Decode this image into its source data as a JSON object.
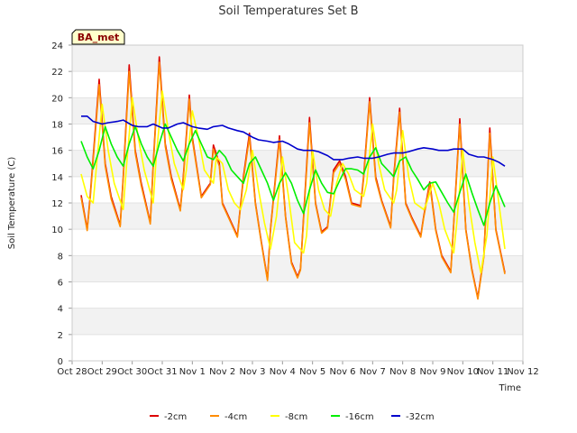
{
  "chart_data": {
    "type": "line",
    "title": "Soil Temperatures Set B",
    "xlabel": "Time",
    "ylabel": "Soil Temperature (C)",
    "badge": "BA_met",
    "ylim": [
      0,
      24
    ],
    "yticks": [
      0,
      2,
      4,
      6,
      8,
      10,
      12,
      14,
      16,
      18,
      20,
      22,
      24
    ],
    "xlim": [
      0,
      15
    ],
    "xtick_labels": [
      "Oct 28",
      "Oct 29",
      "Oct 30",
      "Oct 31",
      "Nov 1",
      "Nov 2",
      "Nov 3",
      "Nov 4",
      "Nov 5",
      "Nov 6",
      "Nov 7",
      "Nov 8",
      "Nov 9",
      "Nov 10",
      "Nov 11",
      "Nov 12"
    ],
    "grid": "horizontal bands",
    "legend_position": "bottom",
    "x_unit": "days since Oct 28",
    "series": [
      {
        "name": "-2cm",
        "color": "#dd0000",
        "x": [
          0.3,
          0.5,
          0.6,
          0.9,
          1.1,
          1.3,
          1.6,
          1.7,
          1.9,
          2.1,
          2.3,
          2.6,
          2.7,
          2.9,
          3.1,
          3.3,
          3.6,
          3.7,
          3.9,
          4.0,
          4.3,
          4.6,
          4.7,
          4.9,
          5.0,
          5.3,
          5.5,
          5.7,
          5.9,
          6.1,
          6.3,
          6.5,
          6.6,
          6.9,
          7.1,
          7.3,
          7.5,
          7.6,
          7.9,
          8.1,
          8.3,
          8.5,
          8.7,
          8.9,
          9.1,
          9.3,
          9.6,
          9.7,
          9.9,
          10.1,
          10.3,
          10.6,
          10.7,
          10.9,
          11.1,
          11.3,
          11.6,
          11.7,
          11.9,
          12.1,
          12.3,
          12.6,
          12.7,
          12.9,
          13.1,
          13.3,
          13.5,
          13.7,
          13.9,
          14.1,
          14.4
        ],
        "y": [
          12.6,
          10.0,
          12.5,
          21.4,
          15.0,
          12.5,
          10.3,
          14.0,
          22.5,
          16.0,
          13.5,
          10.5,
          15.0,
          23.1,
          16.5,
          14.0,
          11.5,
          14.0,
          20.2,
          17.0,
          12.5,
          13.5,
          16.4,
          15.0,
          12.0,
          10.5,
          9.5,
          14.0,
          17.3,
          12.0,
          9.0,
          6.2,
          10.0,
          17.1,
          11.0,
          7.5,
          6.4,
          7.0,
          18.5,
          12.0,
          9.8,
          10.2,
          14.5,
          15.2,
          14.0,
          12.0,
          11.8,
          14.0,
          20.0,
          14.0,
          12.2,
          10.2,
          14.0,
          19.2,
          12.0,
          10.9,
          9.5,
          11.0,
          13.6,
          10.0,
          8.0,
          6.8,
          10.5,
          18.4,
          10.0,
          7.0,
          4.8,
          8.0,
          17.7,
          10.0,
          6.7
        ]
      },
      {
        "name": "-4cm",
        "color": "#ff8c00",
        "x": [
          0.3,
          0.5,
          0.6,
          0.9,
          1.1,
          1.3,
          1.6,
          1.7,
          1.9,
          2.1,
          2.3,
          2.6,
          2.7,
          2.9,
          3.1,
          3.3,
          3.6,
          3.7,
          3.9,
          4.0,
          4.3,
          4.6,
          4.7,
          4.9,
          5.0,
          5.3,
          5.5,
          5.7,
          5.9,
          6.1,
          6.3,
          6.5,
          6.6,
          6.9,
          7.1,
          7.3,
          7.5,
          7.6,
          7.9,
          8.1,
          8.3,
          8.5,
          8.7,
          8.9,
          9.1,
          9.3,
          9.6,
          9.7,
          9.9,
          10.1,
          10.3,
          10.6,
          10.7,
          10.9,
          11.1,
          11.3,
          11.6,
          11.7,
          11.9,
          12.1,
          12.3,
          12.6,
          12.7,
          12.9,
          13.1,
          13.3,
          13.5,
          13.7,
          13.9,
          14.1,
          14.4
        ],
        "y": [
          12.4,
          9.9,
          12.3,
          21.0,
          14.8,
          12.3,
          10.2,
          13.8,
          22.0,
          15.8,
          13.3,
          10.4,
          14.8,
          22.7,
          16.3,
          13.8,
          11.4,
          13.8,
          19.9,
          16.8,
          12.4,
          13.4,
          16.1,
          14.8,
          11.9,
          10.4,
          9.4,
          13.8,
          17.0,
          11.9,
          8.9,
          6.1,
          9.9,
          16.8,
          10.9,
          7.4,
          6.3,
          6.9,
          18.1,
          11.9,
          9.7,
          10.1,
          14.3,
          15.0,
          13.8,
          11.9,
          11.7,
          13.8,
          19.7,
          13.8,
          12.1,
          10.1,
          13.8,
          18.9,
          11.9,
          10.8,
          9.4,
          10.9,
          13.4,
          9.9,
          7.9,
          6.7,
          10.4,
          18.0,
          9.9,
          6.9,
          4.7,
          7.9,
          17.3,
          9.9,
          6.6
        ]
      },
      {
        "name": "-8cm",
        "color": "#ffff00",
        "x": [
          0.3,
          0.5,
          0.7,
          1.0,
          1.2,
          1.4,
          1.7,
          1.8,
          2.0,
          2.2,
          2.4,
          2.7,
          2.8,
          3.0,
          3.2,
          3.4,
          3.7,
          3.8,
          4.0,
          4.2,
          4.4,
          4.7,
          4.8,
          5.0,
          5.2,
          5.4,
          5.6,
          5.8,
          6.0,
          6.2,
          6.4,
          6.6,
          6.8,
          7.0,
          7.2,
          7.4,
          7.7,
          7.8,
          8.0,
          8.2,
          8.4,
          8.6,
          8.8,
          9.0,
          9.2,
          9.4,
          9.7,
          9.8,
          10.0,
          10.2,
          10.4,
          10.7,
          10.8,
          11.0,
          11.2,
          11.4,
          11.7,
          11.8,
          12.0,
          12.2,
          12.4,
          12.7,
          12.8,
          13.0,
          13.2,
          13.4,
          13.6,
          13.8,
          14.0,
          14.2,
          14.4
        ],
        "y": [
          14.2,
          12.5,
          12.0,
          19.5,
          16.0,
          13.5,
          11.5,
          14.5,
          20.0,
          17.0,
          14.5,
          12.0,
          15.5,
          20.5,
          17.5,
          15.0,
          13.0,
          14.5,
          19.0,
          17.0,
          14.5,
          13.5,
          15.5,
          15.0,
          13.0,
          12.0,
          11.5,
          13.0,
          16.0,
          13.0,
          10.5,
          8.5,
          11.0,
          15.5,
          12.5,
          9.0,
          8.2,
          9.5,
          16.0,
          13.0,
          11.5,
          11.0,
          13.5,
          15.0,
          14.2,
          13.0,
          12.5,
          13.5,
          18.0,
          15.0,
          13.0,
          12.0,
          13.0,
          17.5,
          14.0,
          12.0,
          11.5,
          12.0,
          13.5,
          12.0,
          10.0,
          8.2,
          10.5,
          16.0,
          12.0,
          9.0,
          6.7,
          9.5,
          15.5,
          12.0,
          8.5
        ]
      },
      {
        "name": "-16cm",
        "color": "#00ee00",
        "x": [
          0.3,
          0.5,
          0.7,
          0.9,
          1.1,
          1.3,
          1.5,
          1.7,
          1.9,
          2.1,
          2.3,
          2.5,
          2.7,
          2.9,
          3.1,
          3.3,
          3.5,
          3.7,
          3.9,
          4.1,
          4.3,
          4.5,
          4.7,
          4.9,
          5.1,
          5.3,
          5.5,
          5.7,
          5.9,
          6.1,
          6.3,
          6.5,
          6.7,
          6.9,
          7.1,
          7.3,
          7.5,
          7.7,
          7.9,
          8.1,
          8.3,
          8.5,
          8.7,
          8.9,
          9.1,
          9.3,
          9.5,
          9.7,
          9.9,
          10.1,
          10.3,
          10.5,
          10.7,
          10.9,
          11.1,
          11.3,
          11.5,
          11.7,
          11.9,
          12.1,
          12.3,
          12.5,
          12.7,
          12.9,
          13.1,
          13.3,
          13.5,
          13.7,
          13.9,
          14.1,
          14.4
        ],
        "y": [
          16.7,
          15.5,
          14.6,
          16.0,
          17.8,
          16.5,
          15.5,
          14.8,
          16.5,
          17.8,
          16.5,
          15.5,
          14.8,
          16.5,
          18.0,
          17.0,
          16.0,
          15.2,
          16.5,
          17.5,
          16.5,
          15.5,
          15.3,
          16.0,
          15.5,
          14.5,
          14.0,
          13.5,
          15.0,
          15.5,
          14.5,
          13.5,
          12.2,
          13.5,
          14.3,
          13.5,
          12.2,
          11.2,
          13.0,
          14.5,
          13.5,
          12.8,
          12.7,
          13.7,
          14.6,
          14.6,
          14.5,
          14.2,
          15.5,
          16.2,
          15.0,
          14.5,
          14.0,
          15.2,
          15.5,
          14.5,
          13.8,
          13.0,
          13.5,
          13.6,
          12.8,
          12.0,
          11.3,
          12.8,
          14.2,
          12.8,
          11.5,
          10.3,
          12.0,
          13.3,
          11.7
        ]
      },
      {
        "name": "-32cm",
        "color": "#0000cc",
        "x": [
          0.3,
          0.5,
          0.7,
          1.0,
          1.2,
          1.5,
          1.7,
          2.0,
          2.2,
          2.5,
          2.7,
          3.0,
          3.2,
          3.5,
          3.7,
          4.0,
          4.2,
          4.5,
          4.7,
          5.0,
          5.2,
          5.5,
          5.7,
          6.0,
          6.2,
          6.5,
          6.7,
          7.0,
          7.2,
          7.5,
          7.7,
          8.0,
          8.2,
          8.5,
          8.7,
          9.0,
          9.2,
          9.5,
          9.7,
          10.0,
          10.2,
          10.5,
          10.7,
          11.0,
          11.2,
          11.5,
          11.7,
          12.0,
          12.2,
          12.5,
          12.7,
          13.0,
          13.2,
          13.5,
          13.7,
          14.0,
          14.2,
          14.4
        ],
        "y": [
          18.6,
          18.6,
          18.2,
          18.0,
          18.1,
          18.2,
          18.3,
          17.9,
          17.8,
          17.8,
          18.0,
          17.7,
          17.7,
          18.0,
          18.1,
          17.8,
          17.7,
          17.6,
          17.8,
          17.9,
          17.7,
          17.5,
          17.4,
          17.0,
          16.8,
          16.7,
          16.6,
          16.7,
          16.5,
          16.1,
          16.0,
          16.0,
          15.9,
          15.6,
          15.3,
          15.3,
          15.4,
          15.5,
          15.4,
          15.4,
          15.5,
          15.7,
          15.8,
          15.8,
          15.9,
          16.1,
          16.2,
          16.1,
          16.0,
          16.0,
          16.1,
          16.1,
          15.7,
          15.5,
          15.5,
          15.3,
          15.1,
          14.8
        ]
      }
    ]
  }
}
